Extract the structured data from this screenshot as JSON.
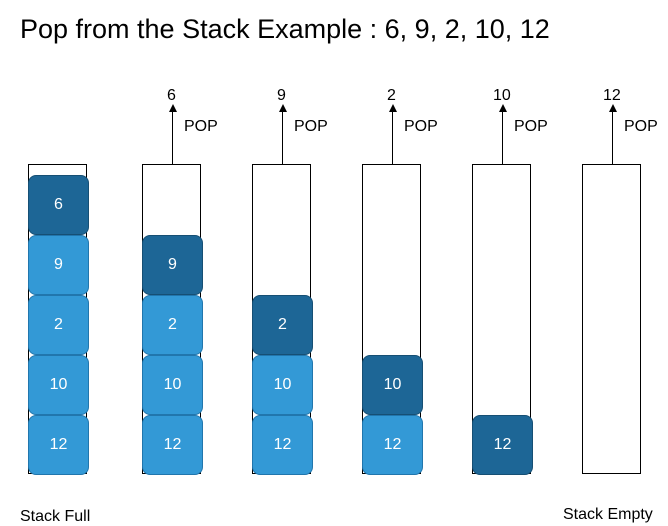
{
  "title": "Pop from the Stack Example : 6, 9, 2, 10, 12",
  "pop_label": "POP",
  "colors": {
    "cell": "#3399d6",
    "top_cell": "#1d6696"
  },
  "stacks": [
    {
      "cells": [
        "6",
        "9",
        "2",
        "10",
        "12"
      ],
      "popped": ""
    },
    {
      "cells": [
        "9",
        "2",
        "10",
        "12"
      ],
      "popped": "6"
    },
    {
      "cells": [
        "2",
        "10",
        "12"
      ],
      "popped": "9"
    },
    {
      "cells": [
        "10",
        "12"
      ],
      "popped": "2"
    },
    {
      "cells": [
        "12"
      ],
      "popped": "10"
    },
    {
      "cells": [],
      "popped": "12"
    }
  ],
  "captions": {
    "full": "Stack Full",
    "empty": "Stack Empty"
  }
}
